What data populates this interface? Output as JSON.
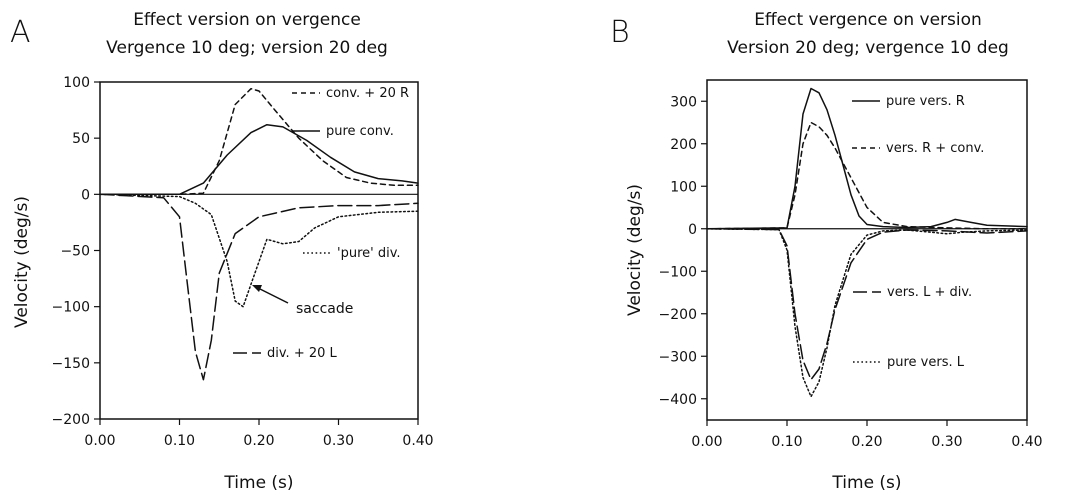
{
  "chart_data": [
    {
      "panel": "A",
      "type": "line",
      "title": "Effect version on vergence",
      "subtitle": "Vergence  10  deg;  version  20  deg",
      "xlabel": "Time  (s)",
      "ylabel": "Velocity  (deg/s)",
      "xlim": [
        0,
        0.4
      ],
      "ylim": [
        -200,
        100
      ],
      "xticks": [
        "0.00",
        "0.10",
        "0.20",
        "0.30",
        "0.40"
      ],
      "yticks": [
        "100",
        "50",
        "0",
        "−50",
        "−100",
        "−150",
        "−200"
      ],
      "grid": false,
      "legend_position": "right, next to each curve",
      "series": [
        {
          "name": "conv. + 20 R",
          "style": "short-dash",
          "x": [
            0,
            0.1,
            0.13,
            0.15,
            0.17,
            0.19,
            0.2,
            0.22,
            0.25,
            0.28,
            0.31,
            0.34,
            0.37,
            0.4
          ],
          "y": [
            0,
            0,
            1,
            30,
            80,
            94,
            92,
            75,
            50,
            30,
            15,
            10,
            8,
            8
          ]
        },
        {
          "name": "pure conv.",
          "style": "solid",
          "x": [
            0,
            0.05,
            0.1,
            0.13,
            0.16,
            0.19,
            0.21,
            0.23,
            0.26,
            0.29,
            0.32,
            0.35,
            0.38,
            0.4
          ],
          "y": [
            0,
            0,
            0,
            10,
            35,
            55,
            62,
            60,
            48,
            33,
            20,
            14,
            12,
            10
          ]
        },
        {
          "name": "'pure' div.",
          "style": "dotted",
          "x": [
            0,
            0.1,
            0.12,
            0.14,
            0.16,
            0.17,
            0.18,
            0.19,
            0.21,
            0.23,
            0.25,
            0.27,
            0.3,
            0.35,
            0.4
          ],
          "y": [
            0,
            -2,
            -8,
            -18,
            -60,
            -95,
            -100,
            -80,
            -40,
            -44,
            -42,
            -30,
            -20,
            -16,
            -15
          ]
        },
        {
          "name": "div. + 20 L",
          "style": "long-dash",
          "x": [
            0,
            0.08,
            0.1,
            0.11,
            0.12,
            0.13,
            0.14,
            0.15,
            0.17,
            0.2,
            0.25,
            0.3,
            0.35,
            0.4
          ],
          "y": [
            0,
            -3,
            -20,
            -80,
            -140,
            -165,
            -130,
            -70,
            -35,
            -20,
            -12,
            -10,
            -10,
            -8
          ]
        }
      ],
      "annotations": [
        {
          "text": "saccade",
          "points_to": {
            "x": 0.18,
            "y": -90
          }
        }
      ]
    },
    {
      "panel": "B",
      "type": "line",
      "title": "Effect vergence on version",
      "subtitle": "Version  20  deg;  vergence  10  deg",
      "xlabel": "Time  (s)",
      "ylabel": "Velocity  (deg/s)",
      "xlim": [
        0,
        0.4
      ],
      "ylim": [
        -450,
        350
      ],
      "xticks": [
        "0.00",
        "0.10",
        "0.20",
        "0.30",
        "0.40"
      ],
      "yticks": [
        "300",
        "200",
        "100",
        "0",
        "−100",
        "−200",
        "−300",
        "−400"
      ],
      "grid": false,
      "legend_position": "right, next to each curve",
      "series": [
        {
          "name": "pure vers. R",
          "style": "solid",
          "x": [
            0,
            0.1,
            0.11,
            0.12,
            0.13,
            0.14,
            0.15,
            0.16,
            0.17,
            0.18,
            0.19,
            0.2,
            0.22,
            0.25,
            0.28,
            0.3,
            0.31,
            0.33,
            0.35,
            0.4
          ],
          "y": [
            0,
            2,
            100,
            270,
            330,
            320,
            280,
            220,
            150,
            80,
            30,
            10,
            5,
            3,
            5,
            15,
            22,
            15,
            8,
            5
          ]
        },
        {
          "name": "vers. R + conv.",
          "style": "short-dash",
          "x": [
            0,
            0.1,
            0.11,
            0.12,
            0.13,
            0.14,
            0.15,
            0.16,
            0.18,
            0.2,
            0.22,
            0.25,
            0.3,
            0.35,
            0.4
          ],
          "y": [
            0,
            2,
            80,
            200,
            250,
            240,
            220,
            190,
            120,
            50,
            15,
            5,
            2,
            0,
            0
          ]
        },
        {
          "name": "vers. L + div.",
          "style": "long-dash",
          "x": [
            0,
            0.09,
            0.1,
            0.11,
            0.12,
            0.13,
            0.14,
            0.15,
            0.16,
            0.18,
            0.2,
            0.22,
            0.25,
            0.3,
            0.35,
            0.4
          ],
          "y": [
            0,
            -2,
            -40,
            -200,
            -310,
            -355,
            -330,
            -270,
            -190,
            -80,
            -25,
            -8,
            -3,
            -5,
            -10,
            -5
          ]
        },
        {
          "name": "pure vers. L",
          "style": "dotted",
          "x": [
            0,
            0.09,
            0.1,
            0.11,
            0.12,
            0.13,
            0.14,
            0.15,
            0.16,
            0.18,
            0.2,
            0.22,
            0.25,
            0.28,
            0.3,
            0.32,
            0.35,
            0.4
          ],
          "y": [
            0,
            -2,
            -50,
            -230,
            -350,
            -395,
            -360,
            -280,
            -180,
            -60,
            -15,
            -5,
            -3,
            -8,
            -12,
            -8,
            -5,
            -3
          ]
        }
      ]
    }
  ]
}
